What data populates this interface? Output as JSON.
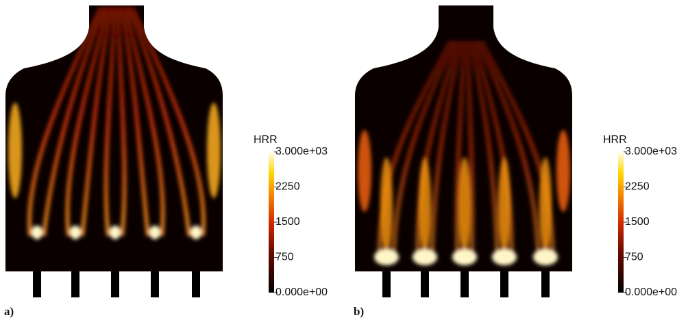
{
  "panels": [
    {
      "label": "a)",
      "colorbar": {
        "title": "HRR",
        "lim": [
          0,
          3000
        ],
        "ticks": [
          {
            "value": 0,
            "label": "0.000e+00"
          },
          750,
          1500,
          2250,
          {
            "value": 3000,
            "label": "3.000e+03"
          }
        ]
      }
    },
    {
      "label": "b)",
      "colorbar": {
        "title": "HRR",
        "lim": [
          0,
          3000
        ],
        "ticks": [
          {
            "value": 0,
            "label": "0.000e+00"
          },
          750,
          1500,
          2250,
          {
            "value": 3000,
            "label": "3.000e+03"
          }
        ]
      }
    }
  ]
}
